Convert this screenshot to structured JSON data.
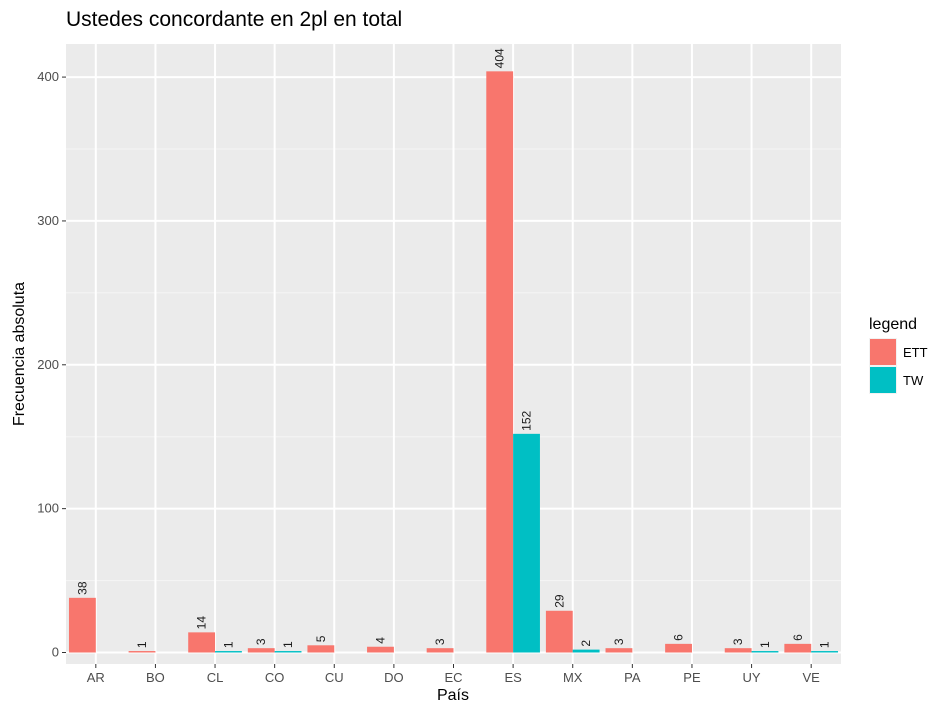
{
  "chart_data": {
    "type": "bar",
    "title": "Ustedes concordante en 2pl en total",
    "xlabel": "País",
    "ylabel": "Frecuencia absoluta",
    "categories": [
      "AR",
      "BO",
      "CL",
      "CO",
      "CU",
      "DO",
      "EC",
      "ES",
      "MX",
      "PA",
      "PE",
      "UY",
      "VE"
    ],
    "series": [
      {
        "name": "ETT",
        "color": "#F8766D",
        "values": [
          38,
          1,
          14,
          3,
          5,
          4,
          3,
          404,
          29,
          3,
          6,
          3,
          6
        ]
      },
      {
        "name": "TW",
        "color": "#00BFC4",
        "values": [
          null,
          null,
          1,
          1,
          null,
          null,
          null,
          152,
          2,
          null,
          null,
          1,
          1
        ]
      }
    ],
    "ylim": [
      -8,
      423
    ],
    "yticks": [
      0,
      100,
      200,
      300,
      400
    ],
    "grid": true,
    "legend": {
      "title": "legend",
      "position": "right"
    }
  }
}
